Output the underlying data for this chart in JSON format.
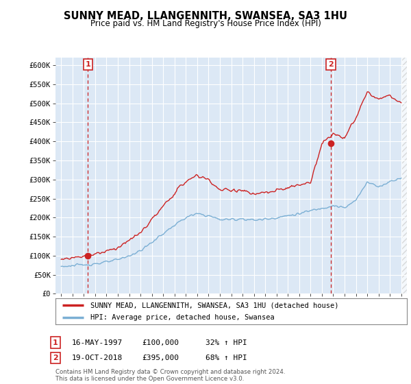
{
  "title": "SUNNY MEAD, LLANGENNITH, SWANSEA, SA3 1HU",
  "subtitle": "Price paid vs. HM Land Registry's House Price Index (HPI)",
  "legend_line1": "SUNNY MEAD, LLANGENNITH, SWANSEA, SA3 1HU (detached house)",
  "legend_line2": "HPI: Average price, detached house, Swansea",
  "sale1_label": "1",
  "sale1_date": "16-MAY-1997",
  "sale1_price": 100000,
  "sale1_hpi": "32% ↑ HPI",
  "sale1_year": 1997.37,
  "sale2_label": "2",
  "sale2_date": "19-OCT-2018",
  "sale2_price": 395000,
  "sale2_hpi": "68% ↑ HPI",
  "sale2_year": 2018.79,
  "hpi_color": "#7bafd4",
  "property_color": "#cc2222",
  "vline_color": "#cc2222",
  "marker_color": "#cc2222",
  "chart_bg": "#dce8f5",
  "ylim_min": 0,
  "ylim_max": 620000,
  "xlim_min": 1994.5,
  "xlim_max": 2025.5,
  "background_color": "#ffffff",
  "grid_color": "#ffffff",
  "footer": "Contains HM Land Registry data © Crown copyright and database right 2024.\nThis data is licensed under the Open Government Licence v3.0.",
  "yticks": [
    0,
    50000,
    100000,
    150000,
    200000,
    250000,
    300000,
    350000,
    400000,
    450000,
    500000,
    550000,
    600000
  ],
  "ytick_labels": [
    "£0",
    "£50K",
    "£100K",
    "£150K",
    "£200K",
    "£250K",
    "£300K",
    "£350K",
    "£400K",
    "£450K",
    "£500K",
    "£550K",
    "£600K"
  ],
  "xtick_years": [
    1995,
    1996,
    1997,
    1998,
    1999,
    2000,
    2001,
    2002,
    2003,
    2004,
    2005,
    2006,
    2007,
    2008,
    2009,
    2010,
    2011,
    2012,
    2013,
    2014,
    2015,
    2016,
    2017,
    2018,
    2019,
    2020,
    2021,
    2022,
    2023,
    2024,
    2025
  ]
}
